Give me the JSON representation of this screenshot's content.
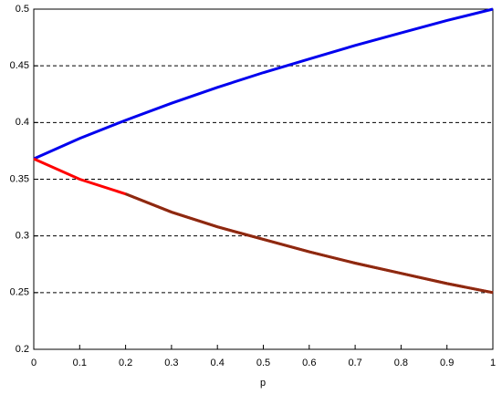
{
  "chart_data": {
    "type": "line",
    "x_label": "p",
    "x": [
      0,
      0.1,
      0.2,
      0.3,
      0.4,
      0.5,
      0.6,
      0.7,
      0.8,
      0.9,
      1
    ],
    "series": [
      {
        "color": "#0000ee",
        "values": [
          0.368,
          0.386,
          0.402,
          0.417,
          0.431,
          0.444,
          0.456,
          0.468,
          0.479,
          0.49,
          0.5
        ]
      },
      {
        "color": "#ff0000",
        "values": [
          0.368,
          0.35,
          0.337,
          0.321,
          0.308,
          0.297,
          0.286,
          0.276,
          0.267,
          0.258,
          0.25
        ]
      },
      {
        "color": "#8b2a10",
        "values": [
          null,
          null,
          0.337,
          0.321,
          0.308,
          0.297,
          0.286,
          0.276,
          0.267,
          0.258,
          0.25
        ]
      }
    ],
    "xlim": [
      0,
      1
    ],
    "xticks": [
      0,
      0.1,
      0.2,
      0.3,
      0.4,
      0.5,
      0.6,
      0.7,
      0.8,
      0.9,
      1
    ],
    "ylim": [
      0.2,
      0.5
    ],
    "yticks": [
      0.2,
      0.25,
      0.3,
      0.35,
      0.4,
      0.45,
      0.5
    ],
    "grid": true
  }
}
